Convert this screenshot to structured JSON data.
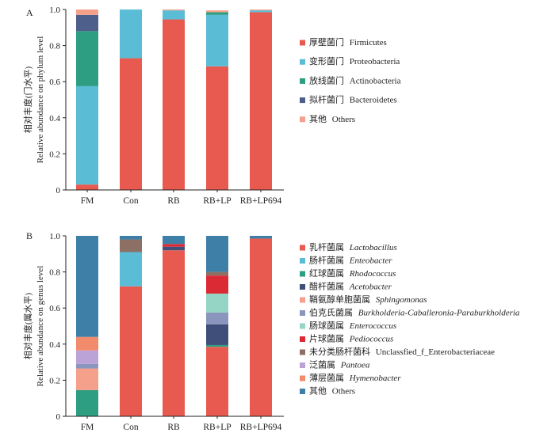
{
  "chart_data": [
    {
      "panel": "A",
      "type": "bar",
      "stacked": true,
      "categories": [
        "FM",
        "Con",
        "RB",
        "RB+LP",
        "RB+LP694"
      ],
      "ylabel": [
        "相对丰度(门水平)",
        "Relative abundance on phylum level"
      ],
      "ylim": [
        0,
        1.0
      ],
      "yticks": [
        "0",
        "0.2",
        "0.4",
        "0.6",
        "0.8",
        "1.0"
      ],
      "legend_position": "right",
      "series": [
        {
          "cn": "厚壁菌门",
          "en": "Firmicutes",
          "italic": false,
          "color": "#e85a4f",
          "values": [
            0.03,
            0.73,
            0.945,
            0.685,
            0.985
          ]
        },
        {
          "cn": "变形菌门",
          "en": "Proteobacteria",
          "italic": false,
          "color": "#5bbcd6",
          "values": [
            0.545,
            0.27,
            0.05,
            0.285,
            0.01
          ]
        },
        {
          "cn": "放线菌门",
          "en": "Actinobacteria",
          "italic": false,
          "color": "#2e9e82",
          "values": [
            0.305,
            0.0,
            0.0,
            0.015,
            0.0
          ]
        },
        {
          "cn": "拟杆菌门",
          "en": "Bacteroidetes",
          "italic": false,
          "color": "#4e5f8b",
          "values": [
            0.09,
            0.0,
            0.0,
            0.0,
            0.0
          ]
        },
        {
          "cn": "其他",
          "en": "Others",
          "italic": false,
          "color": "#f5a08a",
          "values": [
            0.03,
            0.0,
            0.005,
            0.01,
            0.005
          ]
        }
      ]
    },
    {
      "panel": "B",
      "type": "bar",
      "stacked": true,
      "categories": [
        "FM",
        "Con",
        "RB",
        "RB+LP",
        "RB+LP694"
      ],
      "ylabel": [
        "相对丰度(属水平)",
        "Relative abundance on genus level"
      ],
      "ylim": [
        0,
        1.0
      ],
      "yticks": [
        "0",
        "0.2",
        "0.4",
        "0.6",
        "0.8",
        "1.0"
      ],
      "legend_position": "right",
      "series": [
        {
          "cn": "乳杆菌属",
          "en": "Lactobacillus",
          "italic": true,
          "color": "#e85a4f",
          "values": [
            0.0,
            0.72,
            0.92,
            0.385,
            0.985
          ]
        },
        {
          "cn": "肠杆菌属",
          "en": "Enteobacter",
          "italic": true,
          "color": "#5bbcd6",
          "values": [
            0.0,
            0.19,
            0.0,
            0.0,
            0.0
          ]
        },
        {
          "cn": "红球菌属",
          "en": "Rhodococcus",
          "italic": true,
          "color": "#2e9e82",
          "values": [
            0.145,
            0.0,
            0.0,
            0.01,
            0.0
          ]
        },
        {
          "cn": "醋杆菌属",
          "en": "Acetobacter",
          "italic": true,
          "color": "#3f4f7a",
          "values": [
            0.0,
            0.0,
            0.02,
            0.115,
            0.0
          ]
        },
        {
          "cn": "鞘氨醇单胞菌属",
          "en": "Sphingomonas",
          "italic": true,
          "color": "#f5a08a",
          "values": [
            0.12,
            0.0,
            0.0,
            0.0,
            0.0
          ]
        },
        {
          "cn": "伯克氏菌属",
          "en": "Burkholderia-Caballeronia-Paraburkholderia",
          "italic": true,
          "color": "#8a96bd",
          "values": [
            0.025,
            0.0,
            0.0,
            0.065,
            0.0
          ]
        },
        {
          "cn": "肠球菌属",
          "en": "Enterococcus",
          "italic": true,
          "color": "#95d5c5",
          "values": [
            0.0,
            0.0,
            0.0,
            0.105,
            0.0
          ]
        },
        {
          "cn": "片球菌属",
          "en": "Pediococcus",
          "italic": true,
          "color": "#dc2a35",
          "values": [
            0.0,
            0.0,
            0.015,
            0.1,
            0.0
          ]
        },
        {
          "cn": "未分类肠杆菌科",
          "en": "Unclassfied_f_Enterobacteriaceae",
          "italic": false,
          "color": "#8c7066",
          "values": [
            0.0,
            0.07,
            0.0,
            0.02,
            0.0
          ]
        },
        {
          "cn": "泛菌属",
          "en": "Pantoea",
          "italic": true,
          "color": "#bba3d8",
          "values": [
            0.075,
            0.0,
            0.0,
            0.0,
            0.0
          ]
        },
        {
          "cn": "薄层菌属",
          "en": "Hymenobacter",
          "italic": true,
          "color": "#f28a6c",
          "values": [
            0.075,
            0.0,
            0.0,
            0.0,
            0.0
          ]
        },
        {
          "cn": "其他",
          "en": "Others",
          "italic": false,
          "color": "#3d7fa6",
          "values": [
            0.56,
            0.02,
            0.045,
            0.2,
            0.015
          ]
        }
      ]
    }
  ]
}
